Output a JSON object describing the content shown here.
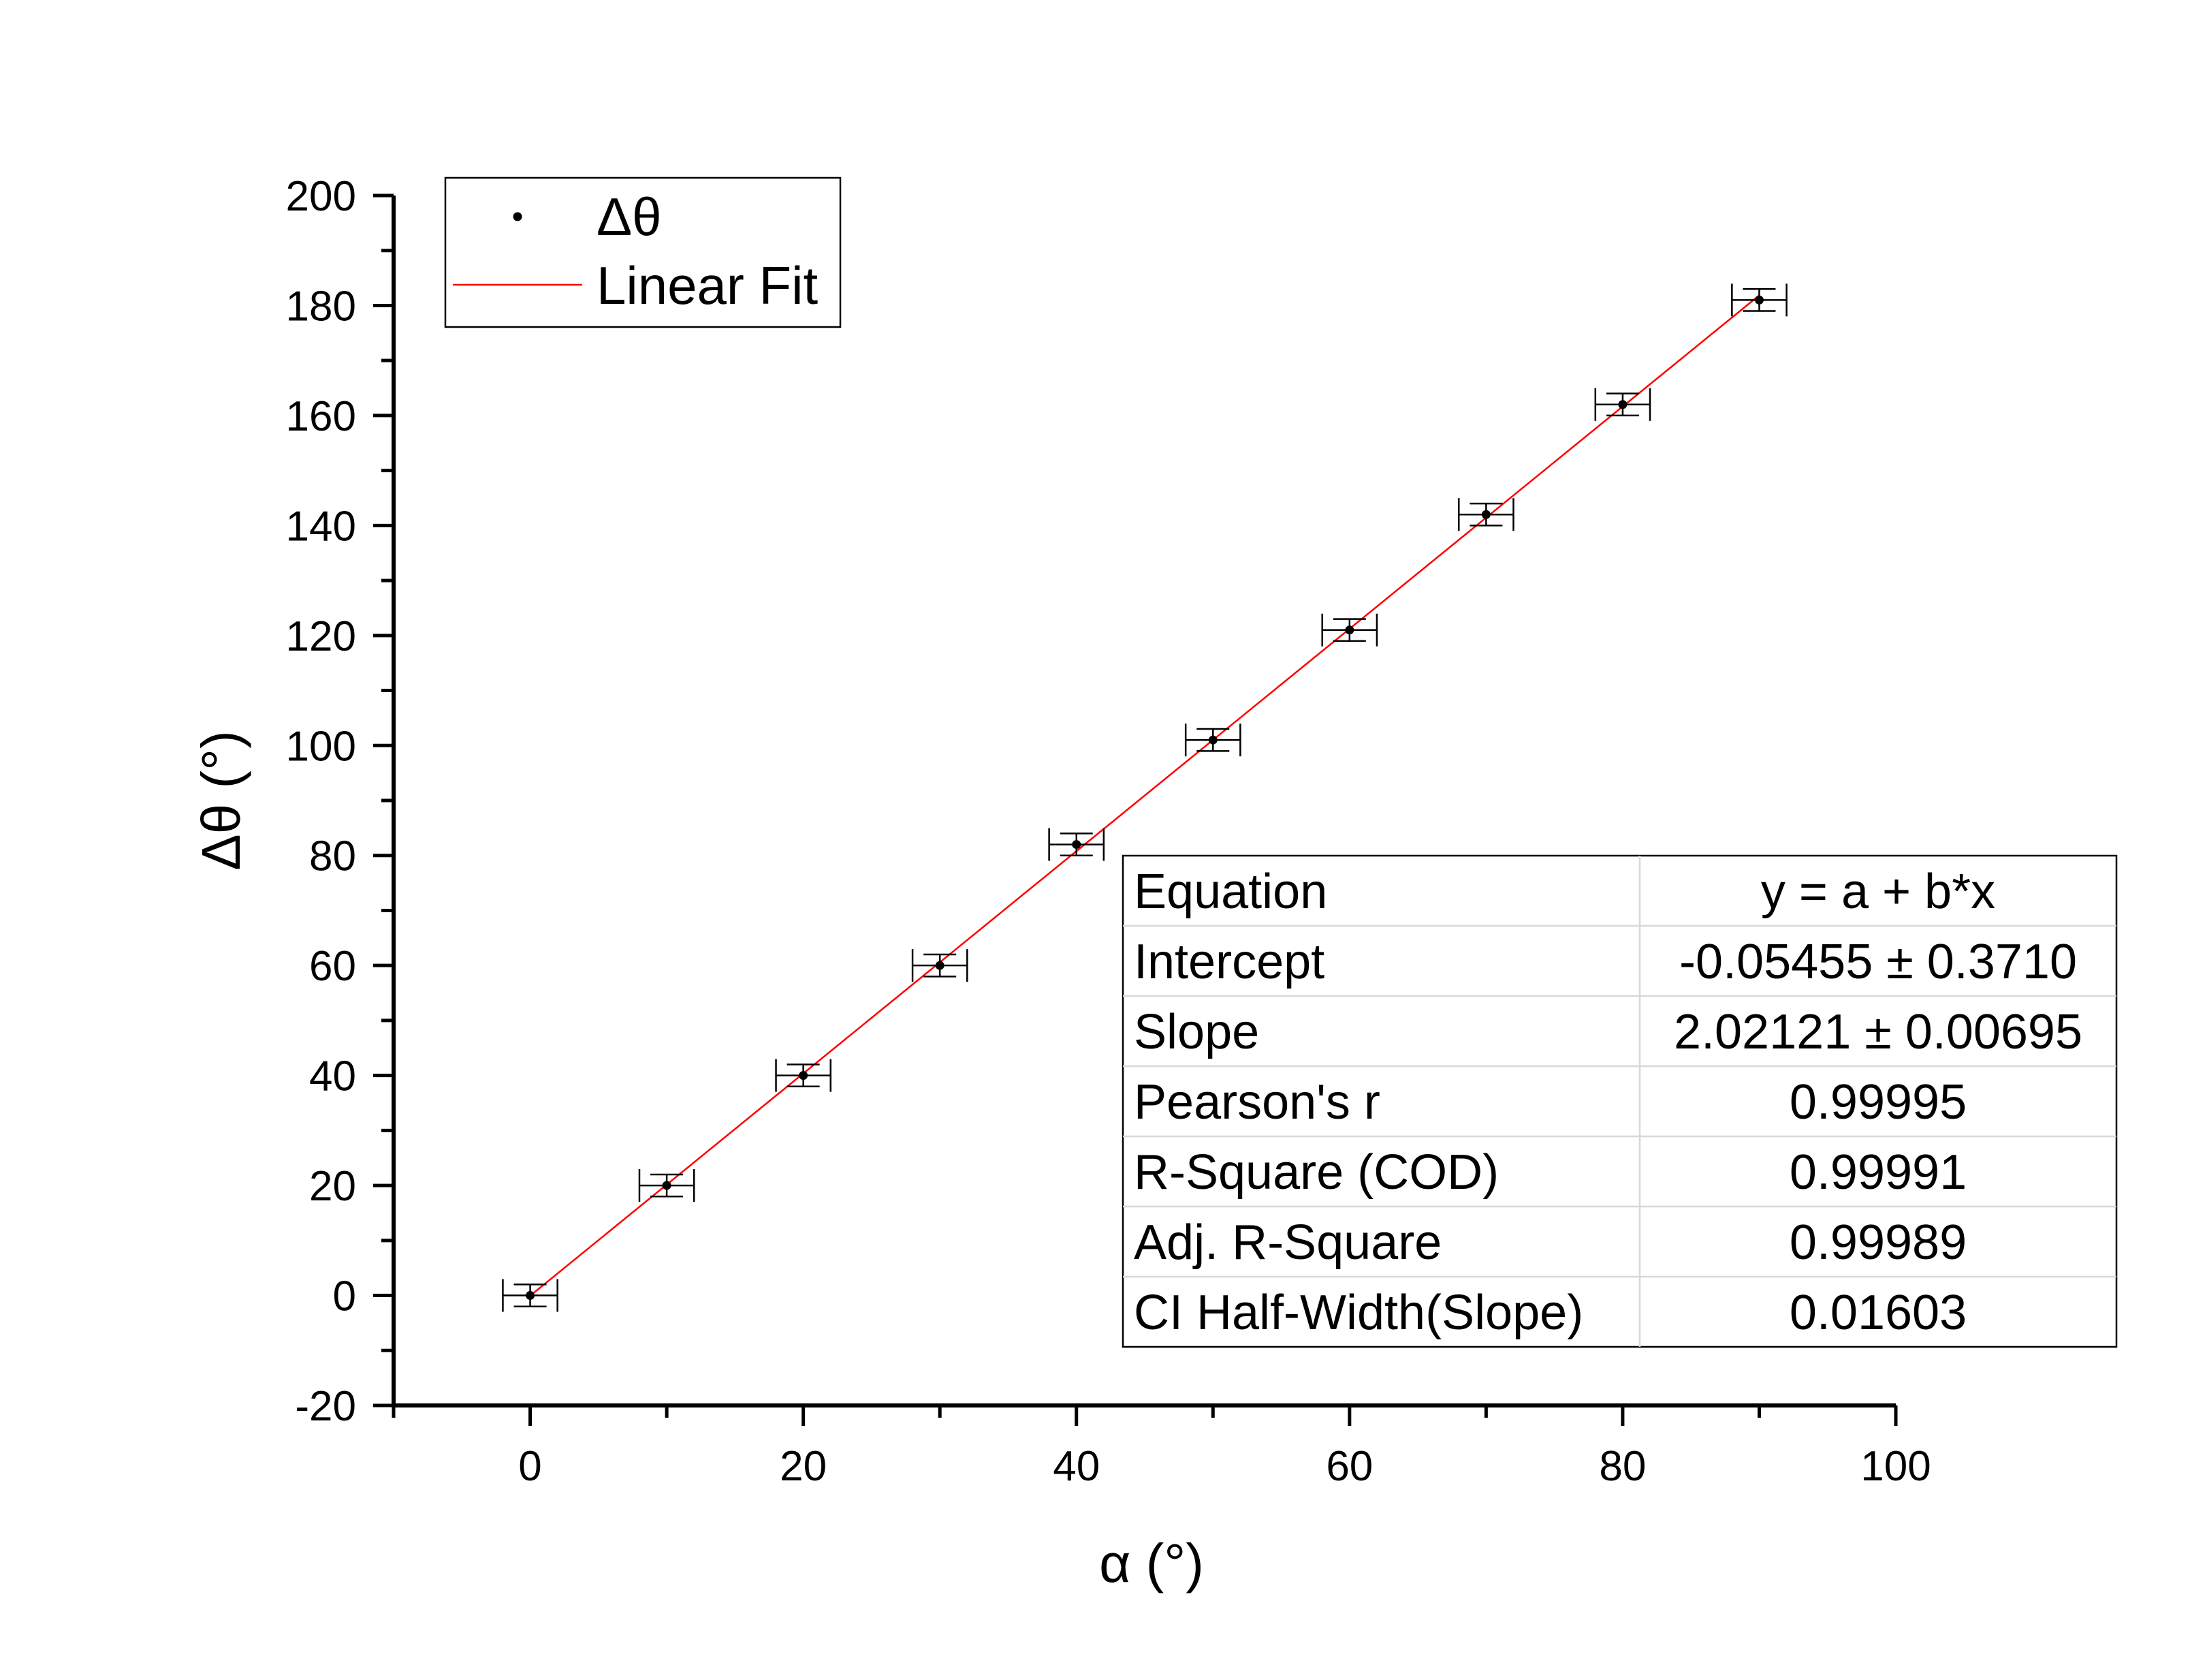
{
  "chart_data": {
    "type": "scatter",
    "xlabel": "α (°)",
    "ylabel": "Δθ (°)",
    "xlim": [
      -10,
      100
    ],
    "ylim": [
      -20,
      200
    ],
    "x_ticks": [
      0,
      20,
      40,
      60,
      80,
      100
    ],
    "y_ticks": [
      -20,
      0,
      20,
      40,
      60,
      80,
      100,
      120,
      140,
      160,
      180,
      200
    ],
    "grid": false,
    "legend": {
      "placement": "top-left",
      "entries": [
        "Δθ",
        "Linear Fit"
      ]
    },
    "colors": {
      "points": "#000000",
      "fit": "#ff0000",
      "error_bars": "#000000"
    },
    "series": [
      {
        "name": "Δθ",
        "x": [
          0,
          10,
          20,
          30,
          40,
          50,
          60,
          70,
          80,
          90
        ],
        "y": [
          0,
          20,
          40,
          60,
          82,
          101,
          121,
          142,
          162,
          181
        ],
        "x_err": [
          2,
          2,
          2,
          2,
          2,
          2,
          2,
          2,
          2,
          2
        ],
        "y_err": [
          2,
          2,
          2,
          2,
          2,
          2,
          2,
          2,
          2,
          2
        ]
      },
      {
        "name": "Linear Fit",
        "intercept": -0.05455,
        "slope": 2.02121,
        "x_range": [
          0,
          90
        ]
      }
    ],
    "fit_table": [
      [
        "Equation",
        "y = a + b*x"
      ],
      [
        "Intercept",
        "-0.05455 ± 0.3710"
      ],
      [
        "Slope",
        "2.02121 ± 0.00695"
      ],
      [
        "Pearson's r",
        "0.99995"
      ],
      [
        "R-Square (COD)",
        "0.99991"
      ],
      [
        "Adj. R-Square",
        "0.99989"
      ],
      [
        "CI Half-Width(Slope)",
        "0.01603"
      ]
    ]
  }
}
